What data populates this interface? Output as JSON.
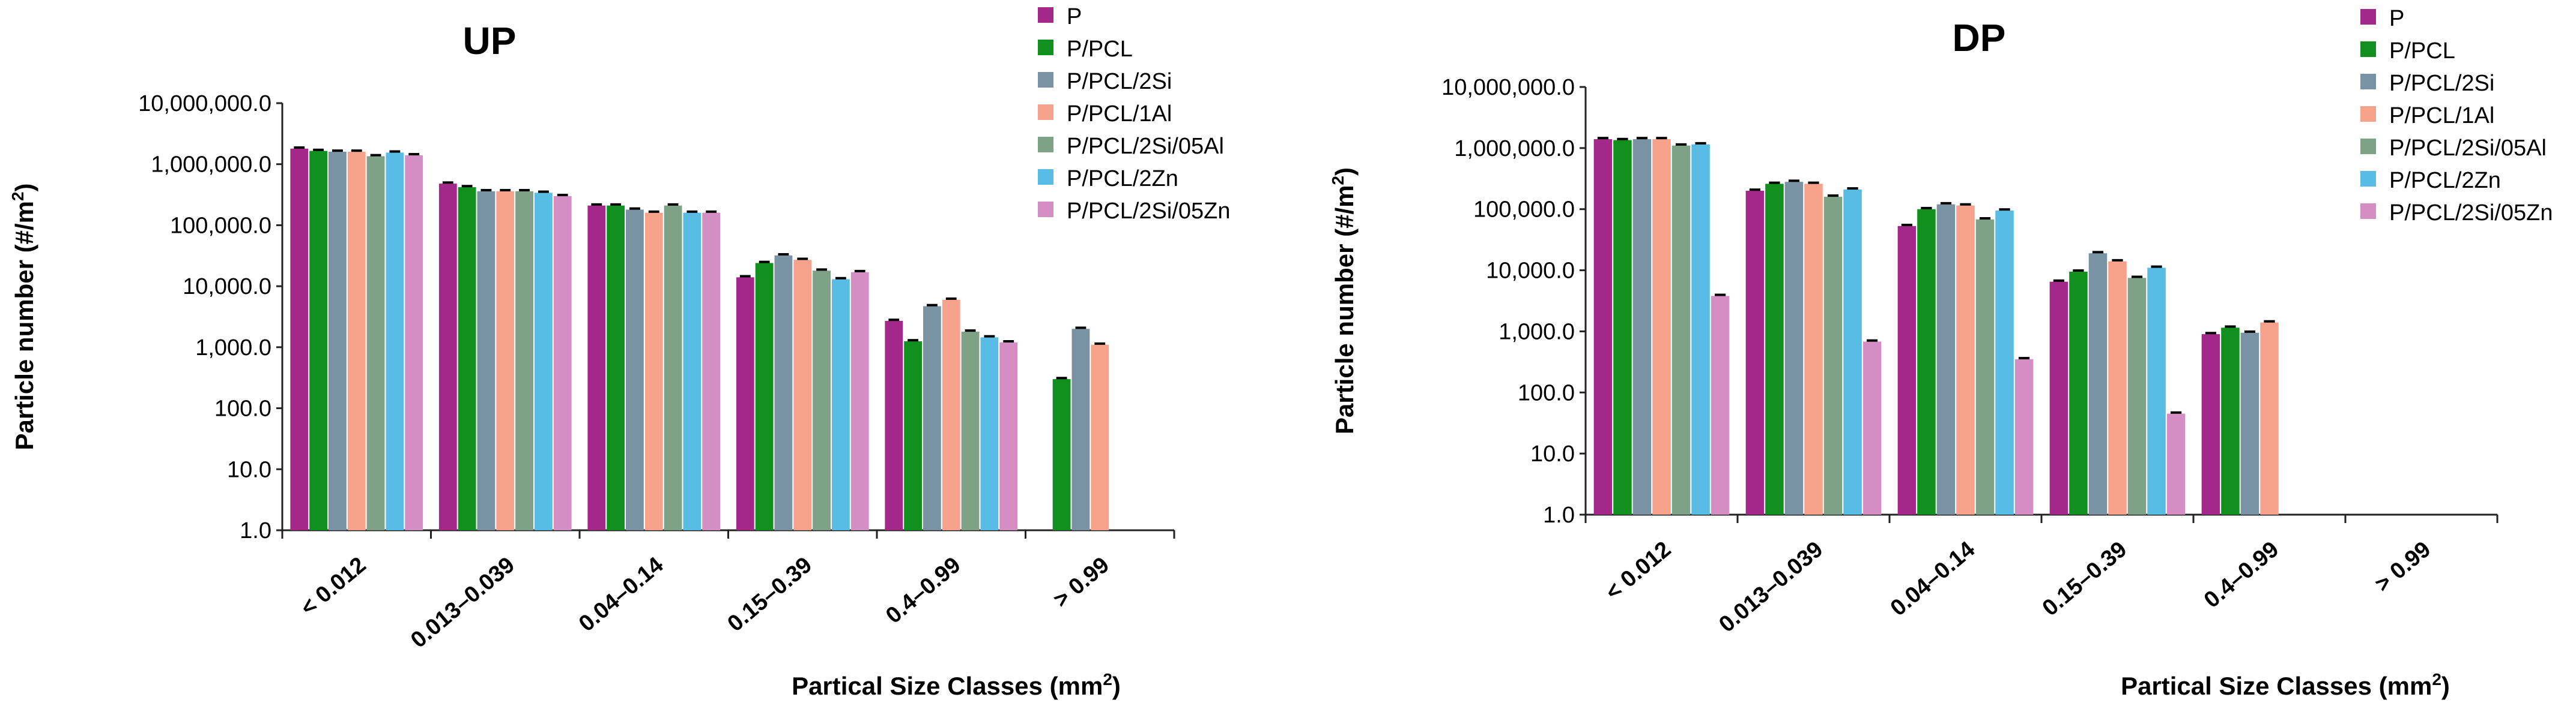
{
  "colors": {
    "series": [
      "#a4288a",
      "#12901f",
      "#7a93a4",
      "#f7a28a",
      "#7ea286",
      "#58bce4",
      "#d48ec4"
    ],
    "axis": "#222222",
    "errorbar": "#000000",
    "text": "#000000"
  },
  "chart_data": [
    {
      "type": "bar",
      "title": "UP",
      "xlabel": "Partical Size Classes (mm",
      "xlabel_sup": "2",
      "xlabel_end": ")",
      "ylabel": "Particle number (#/m",
      "ylabel_sup": "2",
      "ylabel_end": ")",
      "yscale": "log",
      "ylim": [
        1,
        10000000
      ],
      "yticks": [
        "1.0",
        "10.0",
        "100.0",
        "1,000.0",
        "10,000.0",
        "100,000.0",
        "1,000,000.0",
        "10,000,000.0"
      ],
      "categories": [
        "< 0.012",
        "0.013–0.039",
        "0.04–0.14",
        "0.15–0.39",
        "0.4–0.99",
        "> 0.99"
      ],
      "legend": [
        "P",
        "P/PCL",
        "P/PCL/2Si",
        "P/PCL/1Al",
        "P/PCL/2Si/05Al",
        "P/PCL/2Zn",
        "P/PCL/2Si/05Zn"
      ],
      "series": [
        {
          "name": "P",
          "values": [
            1800000,
            480000,
            210000,
            14000,
            2700,
            null
          ]
        },
        {
          "name": "P/PCL",
          "values": [
            1650000,
            420000,
            210000,
            24000,
            1250,
            300
          ]
        },
        {
          "name": "P/PCL/2Si",
          "values": [
            1600000,
            360000,
            180000,
            32000,
            4700,
            2000
          ]
        },
        {
          "name": "P/PCL/1Al",
          "values": [
            1600000,
            360000,
            160000,
            27000,
            6000,
            1100
          ]
        },
        {
          "name": "P/PCL/2Si/05Al",
          "values": [
            1350000,
            360000,
            210000,
            18000,
            1800,
            null
          ]
        },
        {
          "name": "P/PCL/2Zn",
          "values": [
            1550000,
            340000,
            160000,
            13000,
            1450,
            null
          ]
        },
        {
          "name": "P/PCL/2Si/05Zn",
          "values": [
            1400000,
            300000,
            160000,
            17000,
            1200,
            null
          ]
        }
      ]
    },
    {
      "type": "bar",
      "title": "DP",
      "xlabel": "Partical Size Classes (mm",
      "xlabel_sup": "2",
      "xlabel_end": ")",
      "ylabel": "Particle number (#/m",
      "ylabel_sup": "2",
      "ylabel_end": ")",
      "yscale": "log",
      "ylim": [
        1,
        10000000
      ],
      "yticks": [
        "1.0",
        "10.0",
        "100.0",
        "1,000.0",
        "10,000.0",
        "100,000.0",
        "1,000,000.0",
        "10,000,000.0"
      ],
      "categories": [
        "< 0.012",
        "0.013–0.039",
        "0.04–0.14",
        "0.15–0.39",
        "0.4–0.99",
        "> 0.99"
      ],
      "legend": [
        "P",
        "P/PCL",
        "P/PCL/2Si",
        "P/PCL/1Al",
        "P/PCL/2Si/05Al",
        "P/PCL/2Zn",
        "P/PCL/2Si/05Zn"
      ],
      "series": [
        {
          "name": "P",
          "values": [
            1400000,
            200000,
            53000,
            6500,
            900,
            null
          ]
        },
        {
          "name": "P/PCL",
          "values": [
            1350000,
            260000,
            100000,
            9500,
            1150,
            null
          ]
        },
        {
          "name": "P/PCL/2Si",
          "values": [
            1400000,
            280000,
            120000,
            19000,
            950,
            null
          ]
        },
        {
          "name": "P/PCL/1Al",
          "values": [
            1400000,
            260000,
            115000,
            14000,
            1400,
            null
          ]
        },
        {
          "name": "P/PCL/2Si/05Al",
          "values": [
            1100000,
            160000,
            68000,
            7500,
            null,
            null
          ]
        },
        {
          "name": "P/PCL/2Zn",
          "values": [
            1150000,
            210000,
            95000,
            11000,
            null,
            null
          ]
        },
        {
          "name": "P/PCL/2Si/05Zn",
          "values": [
            3800,
            680,
            350,
            45,
            null,
            null
          ]
        }
      ]
    }
  ]
}
